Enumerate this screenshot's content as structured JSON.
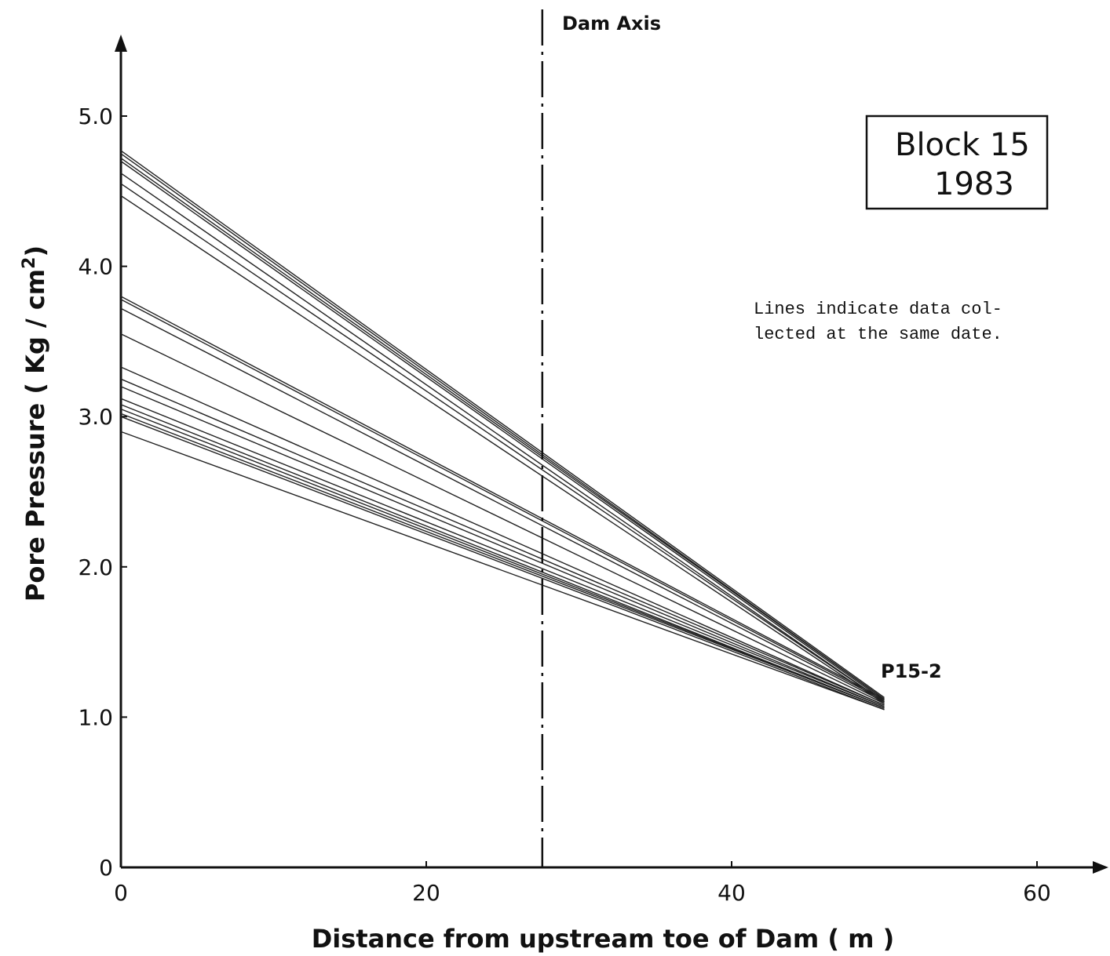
{
  "chart_data": {
    "type": "line",
    "title": "",
    "xlabel": "Distance from upstream toe of Dam  ( m )",
    "ylabel": "Pore  Pressure  ( Kg / cm",
    "ylabel_sup": "2",
    "ylabel_close": ")",
    "xlim": [
      0,
      64
    ],
    "ylim": [
      0,
      5.5
    ],
    "xticks": [
      0,
      20,
      40,
      60
    ],
    "xtick_labels": [
      "0",
      "20",
      "40",
      "60"
    ],
    "yticks": [
      0,
      1,
      2,
      3,
      4,
      5
    ],
    "ytick_labels": [
      "0",
      "1.0",
      "2.0",
      "3.0",
      "4.0",
      "5.0"
    ],
    "grid": false,
    "dam_axis": {
      "x": 27.6,
      "label": "Dam Axis"
    },
    "legend_box": {
      "line1": "Block 15",
      "line2": "1983"
    },
    "note": {
      "line1": "Lines indicate data col-",
      "line2": "lected at the same date."
    },
    "end_point_label": "P15-2",
    "series": [
      {
        "x": [
          0,
          50
        ],
        "values": [
          4.77,
          1.13
        ]
      },
      {
        "x": [
          0,
          50
        ],
        "values": [
          4.75,
          1.12
        ]
      },
      {
        "x": [
          0,
          50
        ],
        "values": [
          4.72,
          1.12
        ]
      },
      {
        "x": [
          0,
          50
        ],
        "values": [
          4.7,
          1.11
        ]
      },
      {
        "x": [
          0,
          50
        ],
        "values": [
          4.62,
          1.1
        ]
      },
      {
        "x": [
          0,
          50
        ],
        "values": [
          4.55,
          1.1
        ]
      },
      {
        "x": [
          0,
          50
        ],
        "values": [
          4.47,
          1.09
        ]
      },
      {
        "x": [
          0,
          50
        ],
        "values": [
          3.8,
          1.12
        ]
      },
      {
        "x": [
          0,
          50
        ],
        "values": [
          3.78,
          1.11
        ]
      },
      {
        "x": [
          0,
          50
        ],
        "values": [
          3.72,
          1.1
        ]
      },
      {
        "x": [
          0,
          50
        ],
        "values": [
          3.55,
          1.09
        ]
      },
      {
        "x": [
          0,
          50
        ],
        "values": [
          3.33,
          1.08
        ]
      },
      {
        "x": [
          0,
          50
        ],
        "values": [
          3.25,
          1.08
        ]
      },
      {
        "x": [
          0,
          50
        ],
        "values": [
          3.2,
          1.07
        ]
      },
      {
        "x": [
          0,
          50
        ],
        "values": [
          3.12,
          1.07
        ]
      },
      {
        "x": [
          0,
          50
        ],
        "values": [
          3.08,
          1.06
        ]
      },
      {
        "x": [
          0,
          50
        ],
        "values": [
          3.05,
          1.06
        ]
      },
      {
        "x": [
          0,
          50
        ],
        "values": [
          3.02,
          1.06
        ]
      },
      {
        "x": [
          0,
          50
        ],
        "values": [
          3.0,
          1.05
        ]
      },
      {
        "x": [
          0,
          50
        ],
        "values": [
          2.9,
          1.05
        ]
      }
    ]
  }
}
